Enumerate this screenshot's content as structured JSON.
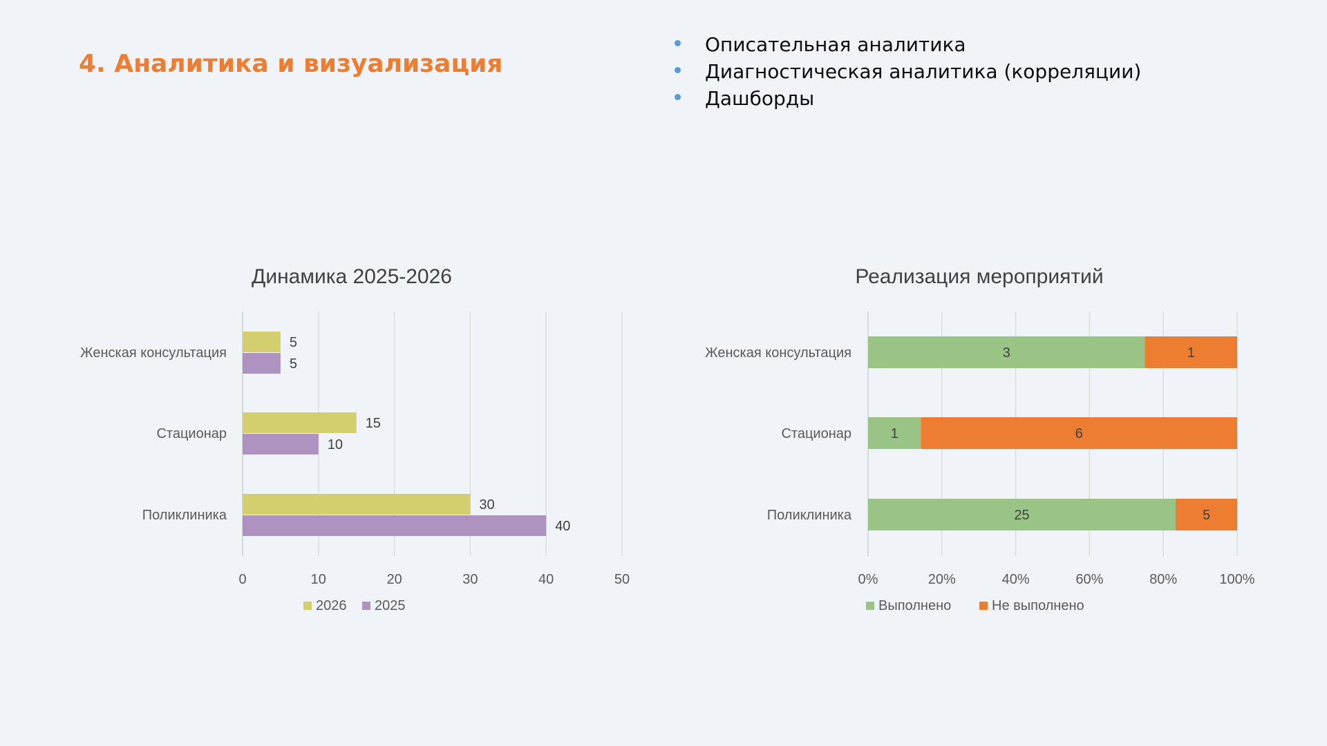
{
  "slide": {
    "title": "4. Аналитика и визуализация",
    "bullets": [
      "Описательная аналитика",
      "Диагностическая аналитика (корреляции)",
      "Дашборды"
    ],
    "bullet_color": "#5b9bd5",
    "title_color": "#ed7d31",
    "background": "#f0f4f8"
  },
  "chart_data": [
    {
      "type": "bar",
      "orientation": "horizontal",
      "title": "Динамика 2025-2026",
      "categories": [
        "Женская консультация",
        "Стационар",
        "Поликлиника"
      ],
      "series": [
        {
          "name": "2026",
          "values": [
            5,
            15,
            30
          ],
          "color": "#d4cf6e"
        },
        {
          "name": "2025",
          "values": [
            5,
            10,
            40
          ],
          "color": "#ae93c0"
        }
      ],
      "xlim": [
        0,
        50
      ],
      "xticks": [
        "0",
        "10",
        "20",
        "30",
        "40",
        "50"
      ],
      "grid": true,
      "legend": "bottom",
      "data_labels": true
    },
    {
      "type": "bar",
      "orientation": "horizontal",
      "stacked": "100%",
      "title": "Реализация мероприятий",
      "categories": [
        "Женская консультация",
        "Стационар",
        "Поликлиника"
      ],
      "series": [
        {
          "name": "Выполнено",
          "values": [
            3,
            1,
            25
          ],
          "color": "#99c486"
        },
        {
          "name": "Не выполнено",
          "values": [
            1,
            6,
            5
          ],
          "color": "#ed7d31"
        }
      ],
      "xlim": [
        0,
        100
      ],
      "xticks": [
        "0%",
        "20%",
        "40%",
        "60%",
        "80%",
        "100%"
      ],
      "grid": true,
      "legend": "bottom",
      "data_labels": true
    }
  ]
}
